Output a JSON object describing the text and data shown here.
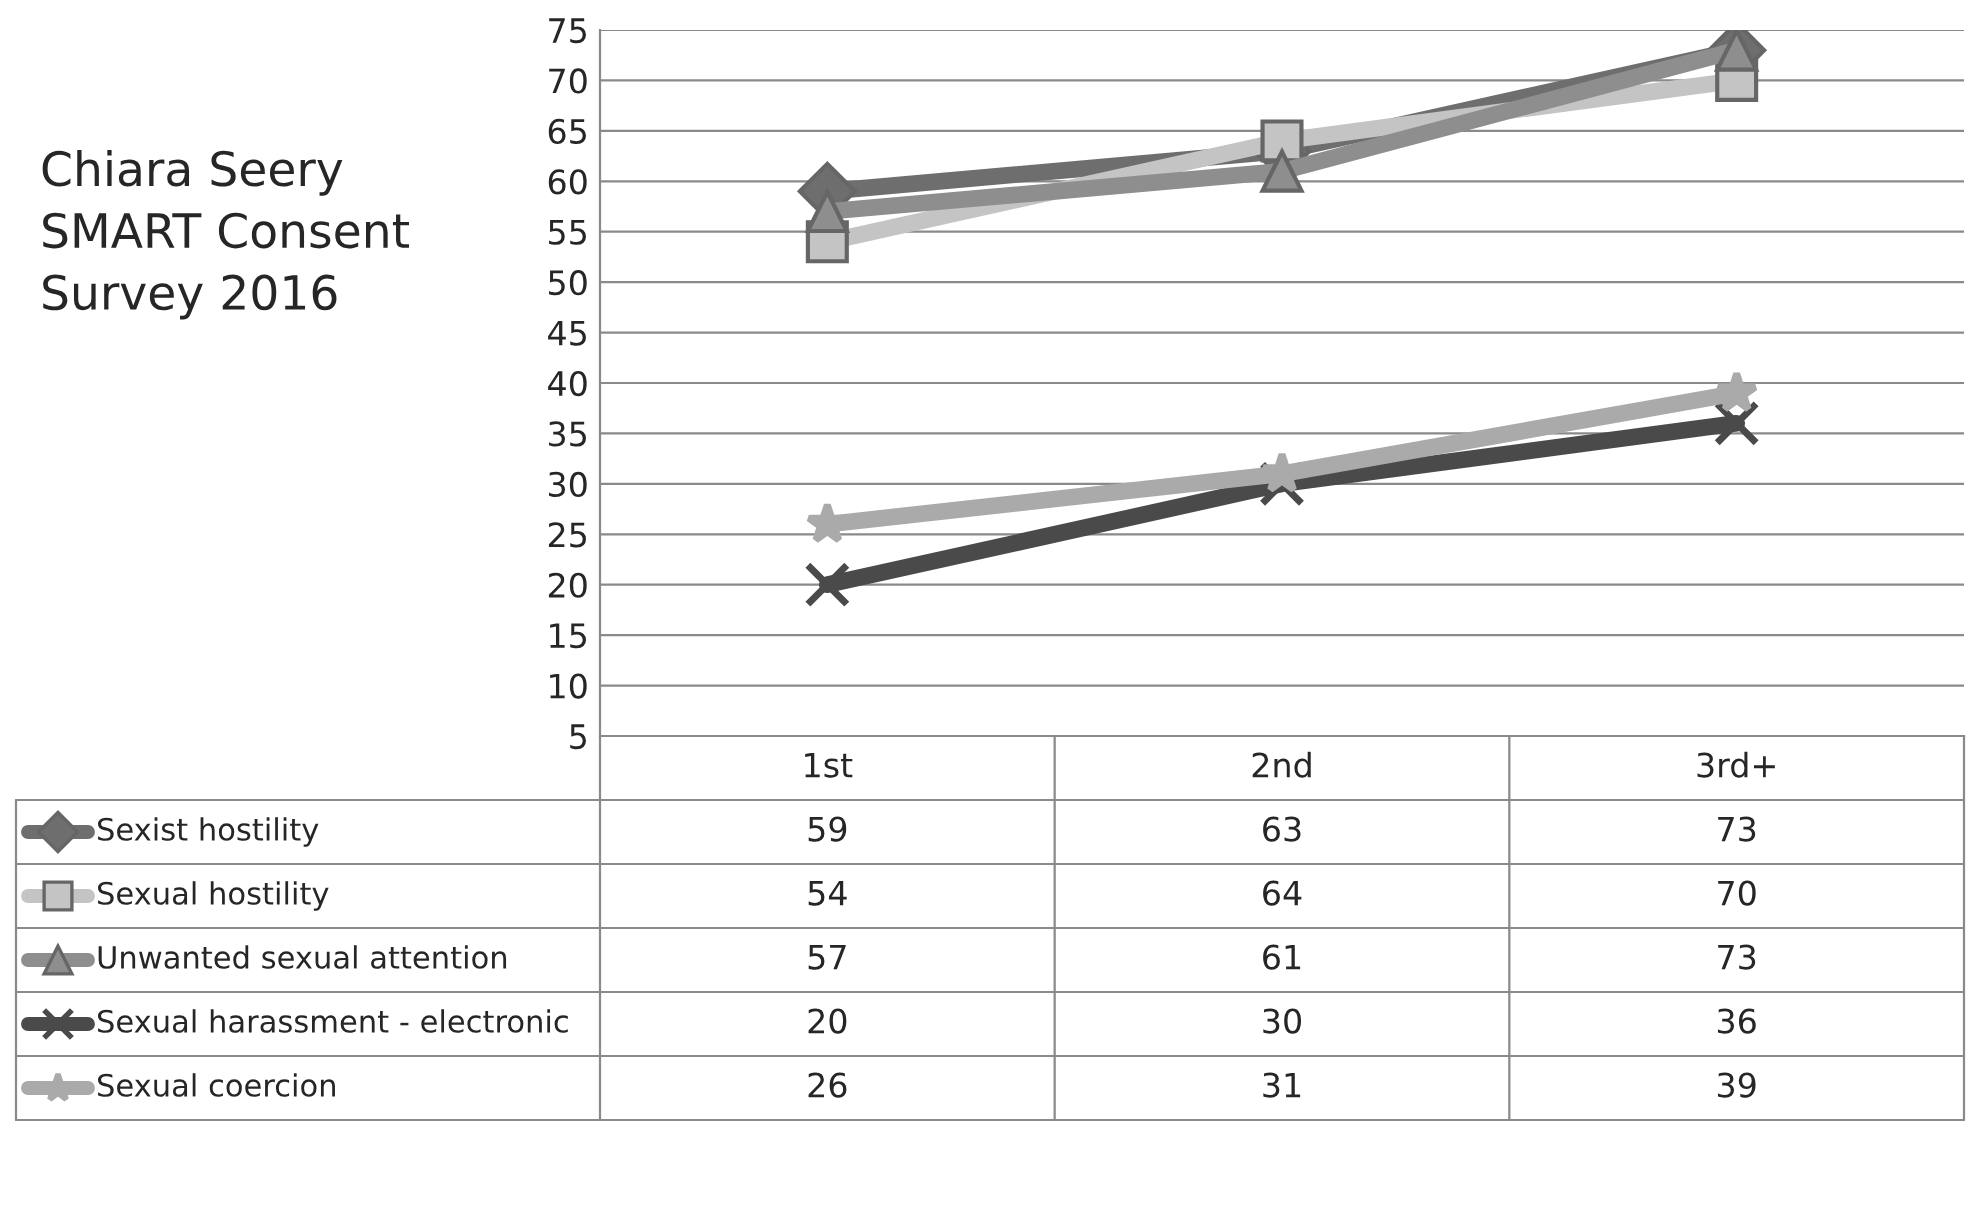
{
  "chart_data": {
    "type": "line",
    "title": "Chiara Seery\nSMART Consent\nSurvey 2016",
    "categories": [
      "1st",
      "2nd",
      "3rd+"
    ],
    "series": [
      {
        "name": "Sexist hostility",
        "color": "#6e6e6e",
        "marker": "diamond",
        "values": [
          59,
          63,
          73
        ]
      },
      {
        "name": "Sexual hostility",
        "color": "#c4c4c4",
        "marker": "square",
        "values": [
          54,
          64,
          70
        ]
      },
      {
        "name": "Unwanted sexual attention",
        "color": "#8e8e8e",
        "marker": "triangle",
        "values": [
          57,
          61,
          73
        ]
      },
      {
        "name": "Sexual harassment - electronic",
        "color": "#4a4a4a",
        "marker": "cross",
        "values": [
          20,
          30,
          36
        ]
      },
      {
        "name": "Sexual coercion",
        "color": "#aaaaaa",
        "marker": "star",
        "values": [
          26,
          31,
          39
        ]
      }
    ],
    "ylim": [
      5,
      75
    ],
    "yticks": [
      5,
      10,
      15,
      20,
      25,
      30,
      35,
      40,
      45,
      50,
      55,
      60,
      65,
      70,
      75
    ],
    "grid": "y",
    "legend": "bottom",
    "data_labels": true,
    "line_style": "solid"
  }
}
